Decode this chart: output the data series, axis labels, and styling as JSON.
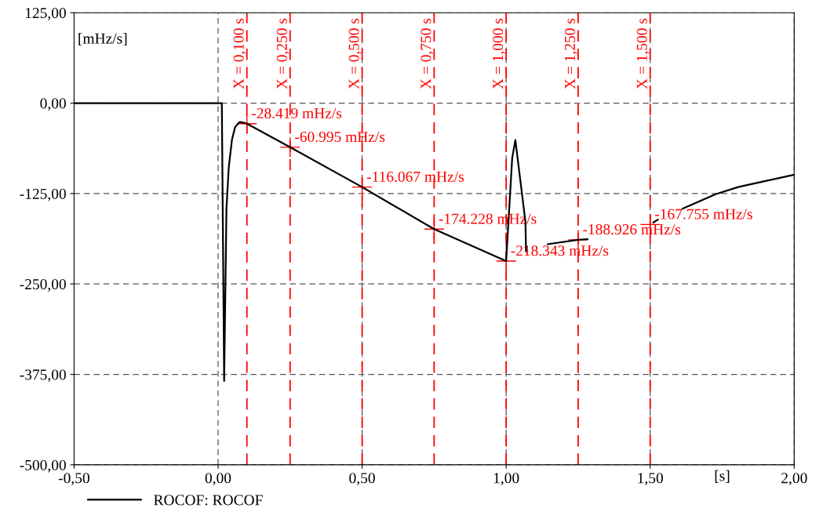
{
  "chart_data": {
    "type": "line",
    "xlabel": "[s]",
    "ylabel": "[mHz/s]",
    "xlim": [
      -0.5,
      2.0
    ],
    "ylim": [
      -500,
      125
    ],
    "xticks": [
      {
        "value": -0.5,
        "label": "-0,50"
      },
      {
        "value": 0,
        "label": "0,00"
      },
      {
        "value": 0.5,
        "label": "0,50"
      },
      {
        "value": 1.0,
        "label": "1,00"
      },
      {
        "value": 1.5,
        "label": "1,50"
      },
      {
        "value": 2.0,
        "label": "2,00"
      }
    ],
    "yticks": [
      {
        "value": -500,
        "label": "-500,00"
      },
      {
        "value": -375,
        "label": "-375,00"
      },
      {
        "value": -250,
        "label": "-250,00"
      },
      {
        "value": -125,
        "label": "-125,00"
      },
      {
        "value": 0,
        "label": "0,00"
      },
      {
        "value": 125,
        "label": "125,00"
      }
    ],
    "grid": true,
    "legend": "bottom left",
    "line_style": "solid",
    "marker": "none",
    "series": [
      {
        "name": "ROCOF: ROCOF",
        "color": "#000000",
        "x": [
          -0.5,
          0.013,
          0.021,
          0.029,
          0.037,
          0.048,
          0.059,
          0.075,
          0.088,
          0.1,
          0.25,
          0.5,
          0.75,
          1.0,
          1.021,
          1.032,
          1.067,
          1.069,
          1.1,
          1.144,
          1.25,
          1.283,
          1.4,
          1.511,
          1.527,
          1.55,
          1.612,
          1.727,
          1.805,
          1.885,
          2.0
        ],
        "values": [
          0,
          0,
          -384,
          -146,
          -89,
          -51,
          -33,
          -26,
          -27,
          -28.419,
          -60.995,
          -116.067,
          -174.228,
          -218.343,
          -76,
          -51,
          -164,
          -205,
          null,
          -195,
          -188.926,
          -188,
          null,
          -165,
          -161,
          null,
          -146,
          -126,
          -116,
          -109,
          -99
        ]
      }
    ],
    "ref_lines": [
      {
        "axis": "x",
        "value": 0.1,
        "label": "X = 0,100 s",
        "color": "#ff0000",
        "line_style": "dashed"
      },
      {
        "axis": "x",
        "value": 0.25,
        "label": "X = 0,250 s",
        "color": "#ff0000",
        "line_style": "dashed"
      },
      {
        "axis": "x",
        "value": 0.5,
        "label": "X = 0,500 s",
        "color": "#ff0000",
        "line_style": "dashed"
      },
      {
        "axis": "x",
        "value": 0.75,
        "label": "X = 0,750 s",
        "color": "#ff0000",
        "line_style": "dashed"
      },
      {
        "axis": "x",
        "value": 1.0,
        "label": "X = 1,000 s",
        "color": "#ff0000",
        "line_style": "dashed"
      },
      {
        "axis": "x",
        "value": 1.25,
        "label": "X = 1,250 s",
        "color": "#ff0000",
        "line_style": "dashed"
      },
      {
        "axis": "x",
        "value": 1.5,
        "label": "X = 1,500 s",
        "color": "#ff0000",
        "line_style": "dashed"
      }
    ],
    "annotations": [
      {
        "text": "-28.419 mHz/s",
        "x": 0.1,
        "y": -28.419
      },
      {
        "text": "-60.995 mHz/s",
        "x": 0.25,
        "y": -60.995
      },
      {
        "text": "-116.067 mHz/s",
        "x": 0.5,
        "y": -116.067
      },
      {
        "text": "-174.228 mHz/s",
        "x": 0.75,
        "y": -174.228
      },
      {
        "text": "-218.343 mHz/s",
        "x": 1.0,
        "y": -218.343
      },
      {
        "text": "-188.926 mHz/s",
        "x": 1.25,
        "y": -188.926
      },
      {
        "text": "-167.755 mHz/s",
        "x": 1.5,
        "y": -167.755
      }
    ]
  }
}
